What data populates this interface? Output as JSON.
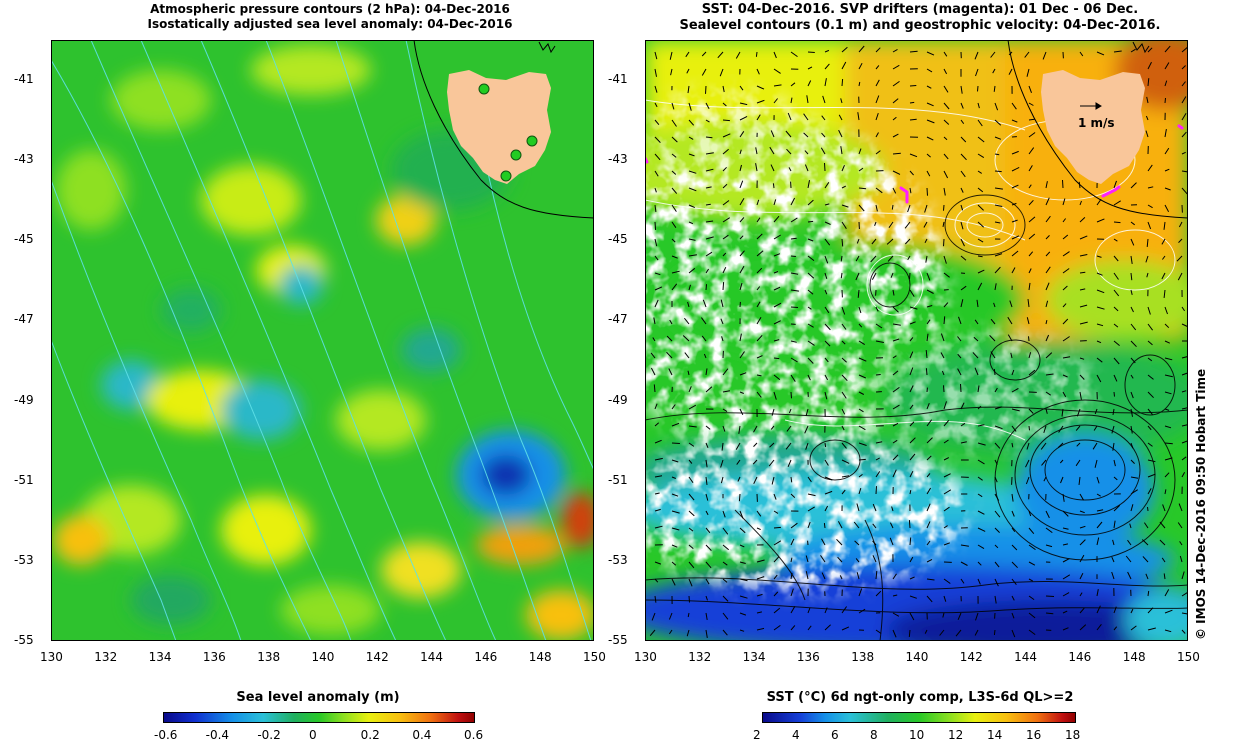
{
  "left_panel": {
    "title_line1": "Atmospheric pressure contours (2 hPa): 04-Dec-2016",
    "title_line2": "Isostatically adjusted sea level anomaly: 04-Dec-2016",
    "colorbar_title": "Sea level anomaly (m)",
    "colorbar_ticks": [
      "-0.6",
      "-0.4",
      "-0.2",
      "0",
      "0.2",
      "0.4",
      "0.6"
    ]
  },
  "right_panel": {
    "title_line1": "SST: 04-Dec-2016. SVP drifters (magenta): 01 Dec - 06 Dec.",
    "title_line2": "Sealevel contours (0.1 m) and geostrophic velocity: 04-Dec-2016.",
    "colorbar_title": "SST (°C) 6d ngt-only comp, L3S-6d QL>=2",
    "colorbar_ticks": [
      "2",
      "4",
      "6",
      "8",
      "10",
      "12",
      "14",
      "16",
      "18"
    ],
    "velocity_label": "1 m/s",
    "credit": "© IMOS 14-Dec-2016 09:50 Hobart Time"
  },
  "axes": {
    "x_ticks": [
      "130",
      "132",
      "134",
      "136",
      "138",
      "140",
      "142",
      "144",
      "146",
      "148",
      "150"
    ],
    "y_ticks": [
      "-41",
      "-43",
      "-45",
      "-47",
      "-49",
      "-51",
      "-53",
      "-55"
    ]
  },
  "colors": {
    "land": "#f9c69a",
    "drifter": "#ff20ff",
    "tide_gauge": "#22cc22"
  }
}
